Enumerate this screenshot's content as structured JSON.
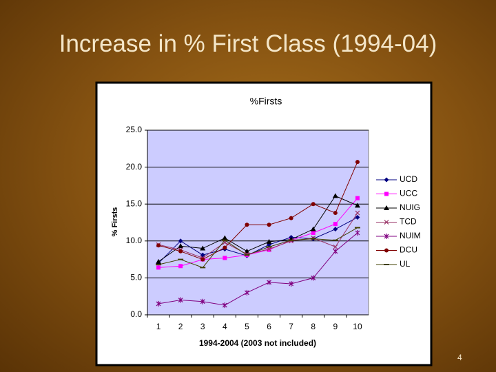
{
  "slide": {
    "title": "Increase in % First Class (1994-04)",
    "page_number": "4"
  },
  "chart_data": {
    "type": "line",
    "title": "%Firsts",
    "y_label": "% Firsts",
    "x_label": "1994-2004 (2003 not included)",
    "categories": [
      "1",
      "2",
      "3",
      "4",
      "5",
      "6",
      "7",
      "8",
      "9",
      "10"
    ],
    "ylim": [
      0,
      25
    ],
    "yticks": [
      {
        "value": 0,
        "label": "0.0"
      },
      {
        "value": 5,
        "label": "5.0"
      },
      {
        "value": 10,
        "label": "10.0"
      },
      {
        "value": 15,
        "label": "15.0"
      },
      {
        "value": 20,
        "label": "20.0"
      },
      {
        "value": 25,
        "label": "25.0"
      }
    ],
    "grid": true,
    "legend": "right",
    "series": [
      {
        "name": "UCD",
        "color": "#000080",
        "marker": "diamond",
        "values": [
          7.0,
          10.0,
          8.1,
          8.9,
          8.0,
          9.5,
          10.5,
          10.3,
          11.6,
          13.2
        ]
      },
      {
        "name": "UCC",
        "color": "#ff00ff",
        "marker": "square",
        "values": [
          6.4,
          6.6,
          7.5,
          7.7,
          8.1,
          8.8,
          10.1,
          11.1,
          12.3,
          15.8
        ]
      },
      {
        "name": "NUIG",
        "color": "#000000",
        "marker": "triangle",
        "values": [
          7.2,
          9.3,
          9.0,
          10.4,
          8.6,
          9.9,
          10.2,
          11.6,
          16.1,
          14.8
        ]
      },
      {
        "name": "TCD",
        "color": "#993366",
        "marker": "x",
        "values": [
          9.5,
          8.8,
          7.7,
          9.8,
          8.2,
          8.9,
          10.0,
          10.4,
          9.2,
          13.8
        ]
      },
      {
        "name": "NUIM",
        "color": "#800080",
        "marker": "star",
        "values": [
          1.5,
          2.0,
          1.8,
          1.3,
          3.0,
          4.4,
          4.2,
          5.0,
          8.6,
          11.1
        ]
      },
      {
        "name": "DCU",
        "color": "#800000",
        "marker": "circle",
        "values": [
          9.4,
          8.6,
          7.5,
          9.1,
          12.2,
          12.2,
          13.1,
          15.0,
          13.8,
          20.7
        ]
      },
      {
        "name": "UL",
        "color": "#404000",
        "marker": "dash",
        "values": [
          6.8,
          7.5,
          6.4,
          10.1,
          8.1,
          9.2,
          10.1,
          10.3,
          10.1,
          11.8
        ]
      }
    ]
  }
}
